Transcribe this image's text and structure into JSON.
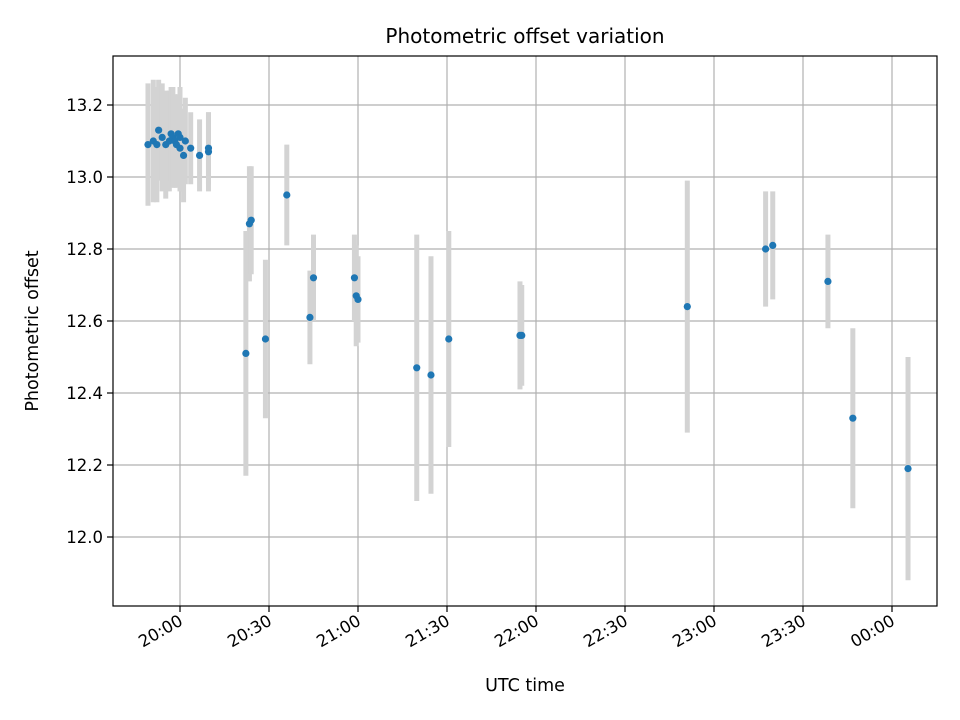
{
  "chart_data": {
    "type": "scatter",
    "title": "Photometric offset variation",
    "xlabel": "UTC time",
    "ylabel": "Photometric offset",
    "grid": true,
    "x_tick_labels": [
      "20:00",
      "20:30",
      "21:00",
      "21:30",
      "22:00",
      "22:30",
      "23:00",
      "23:30",
      "00:00"
    ],
    "y_tick_labels": [
      "12.0",
      "12.2",
      "12.4",
      "12.6",
      "12.8",
      "13.0",
      "13.2"
    ],
    "colors": {
      "point": "#1f77b4",
      "errorbar": "#d3d3d3",
      "grid": "#b0b0b0"
    },
    "series": [
      {
        "x_hours": [
          19.82,
          19.85,
          19.87,
          19.88,
          19.9,
          19.92,
          19.94,
          19.95,
          19.96,
          19.97,
          19.98,
          19.99,
          20.0,
          20.0,
          20.02,
          20.03,
          20.06,
          20.11,
          20.16,
          20.16,
          20.37,
          20.39,
          20.4,
          20.48,
          20.6,
          20.73,
          20.75,
          20.98,
          20.99,
          21.0,
          21.33,
          21.41,
          21.51,
          21.91,
          21.92,
          22.85,
          23.29,
          23.33,
          23.64,
          23.78,
          24.09
        ],
        "y": [
          13.09,
          13.1,
          13.09,
          13.13,
          13.11,
          13.09,
          13.1,
          13.12,
          13.11,
          13.1,
          13.09,
          13.12,
          13.11,
          13.08,
          13.06,
          13.1,
          13.08,
          13.06,
          13.07,
          13.08,
          12.51,
          12.87,
          12.88,
          12.55,
          12.95,
          12.61,
          12.72,
          12.72,
          12.67,
          12.66,
          12.47,
          12.45,
          12.55,
          12.56,
          12.56,
          12.64,
          12.8,
          12.81,
          12.71,
          12.33,
          12.19
        ],
        "yerr": [
          0.17,
          0.17,
          0.16,
          0.14,
          0.15,
          0.15,
          0.14,
          0.13,
          0.14,
          0.13,
          0.12,
          0.11,
          0.14,
          0.12,
          0.13,
          0.12,
          0.1,
          0.1,
          0.11,
          0.1,
          0.34,
          0.16,
          0.15,
          0.22,
          0.14,
          0.13,
          0.12,
          0.12,
          0.14,
          0.12,
          0.37,
          0.33,
          0.3,
          0.15,
          0.14,
          0.35,
          0.16,
          0.15,
          0.13,
          0.25,
          0.31
        ]
      }
    ]
  }
}
